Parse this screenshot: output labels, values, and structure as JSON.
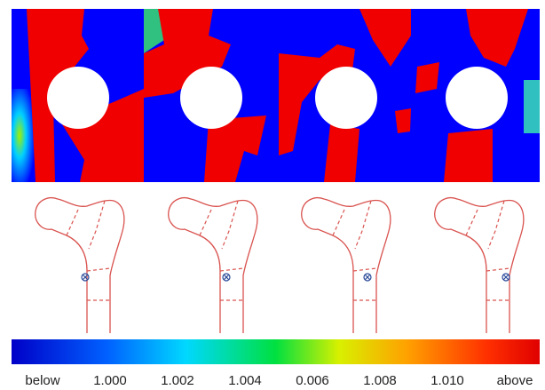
{
  "colorbar": {
    "labels": [
      "below",
      "1.000",
      "1.002",
      "1.004",
      "0.006",
      "1.008",
      "1.010",
      "above"
    ]
  }
}
